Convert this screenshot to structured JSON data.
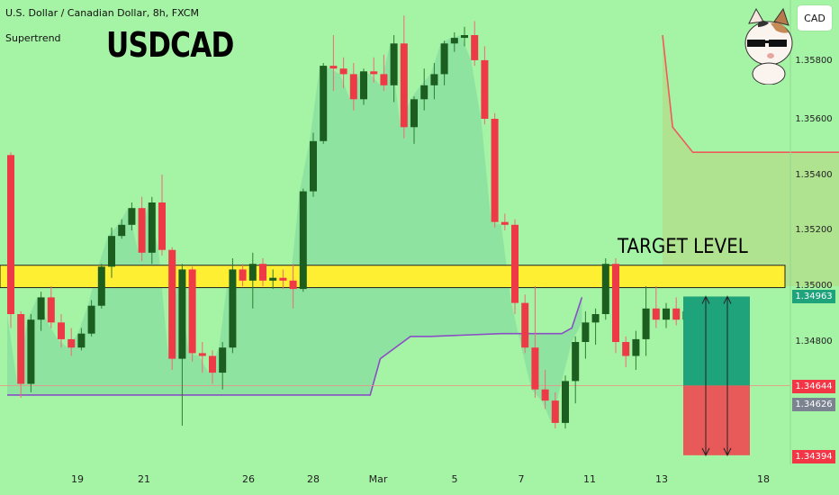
{
  "header": {
    "instrument": "U.S. Dollar / Canadian Dollar, 8h, FXCM",
    "indicator": "Supertrend",
    "symbol": "USDCAD",
    "currency_button": "CAD"
  },
  "annotations": {
    "target_label": "TARGET LEVEL"
  },
  "price_badges": {
    "p1": "1.34963",
    "p2": "1.34644",
    "p3": "1.34626",
    "p4": "1.34394"
  },
  "colors": {
    "background": "#a5f3a5",
    "bull": "#1b5e20",
    "bear": "#ee3a47",
    "zone": "#ffef33",
    "supertrend_up": "#8a4fc4",
    "supertrend_down": "#ef5b5b",
    "tp_zone": "#1fa37a",
    "sl_zone": "#e85a5a"
  },
  "chart_data": {
    "type": "candlestick",
    "timeframe": "8h",
    "ylim": [
      1.3436,
      1.3594
    ],
    "y_ticks": [
      "1.35800",
      "1.35600",
      "1.35400",
      "1.35200",
      "1.35000",
      "1.34800"
    ],
    "y_tick_values": [
      1.358,
      1.356,
      1.354,
      1.352,
      1.35,
      1.348
    ],
    "x_labels": [
      "19",
      "21",
      "26",
      "28",
      "Mar",
      "5",
      "7",
      "11",
      "13",
      "18"
    ],
    "candles": [
      [
        1.3547,
        1.3548,
        1.3485,
        1.349
      ],
      [
        1.349,
        1.3491,
        1.346,
        1.3465
      ],
      [
        1.3465,
        1.349,
        1.3462,
        1.3488
      ],
      [
        1.3488,
        1.3498,
        1.3484,
        1.3496
      ],
      [
        1.3496,
        1.35,
        1.3485,
        1.3487
      ],
      [
        1.3487,
        1.349,
        1.3478,
        1.3481
      ],
      [
        1.3481,
        1.3485,
        1.3475,
        1.3478
      ],
      [
        1.3478,
        1.3485,
        1.3477,
        1.3483
      ],
      [
        1.3483,
        1.3495,
        1.3482,
        1.3493
      ],
      [
        1.3493,
        1.3508,
        1.3492,
        1.3507
      ],
      [
        1.3507,
        1.3521,
        1.3503,
        1.3518
      ],
      [
        1.3518,
        1.3524,
        1.3517,
        1.3522
      ],
      [
        1.3522,
        1.353,
        1.352,
        1.3528
      ],
      [
        1.3528,
        1.3532,
        1.3509,
        1.3512
      ],
      [
        1.3512,
        1.3532,
        1.3508,
        1.353
      ],
      [
        1.353,
        1.354,
        1.3511,
        1.3513
      ],
      [
        1.3513,
        1.3514,
        1.347,
        1.3474
      ],
      [
        1.3474,
        1.3508,
        1.345,
        1.3506
      ],
      [
        1.3506,
        1.3507,
        1.3473,
        1.3476
      ],
      [
        1.3476,
        1.348,
        1.3469,
        1.3475
      ],
      [
        1.3475,
        1.3477,
        1.3465,
        1.3469
      ],
      [
        1.3469,
        1.348,
        1.3463,
        1.3478
      ],
      [
        1.3478,
        1.351,
        1.3476,
        1.3506
      ],
      [
        1.3506,
        1.3508,
        1.35,
        1.3502
      ],
      [
        1.3502,
        1.3512,
        1.3492,
        1.3508
      ],
      [
        1.3508,
        1.351,
        1.35,
        1.3502
      ],
      [
        1.3502,
        1.3506,
        1.3499,
        1.3503
      ],
      [
        1.3503,
        1.3506,
        1.3499,
        1.3502
      ],
      [
        1.3502,
        1.3508,
        1.3492,
        1.3499
      ],
      [
        1.3499,
        1.3535,
        1.3498,
        1.3534
      ],
      [
        1.3534,
        1.3555,
        1.3532,
        1.3552
      ],
      [
        1.3552,
        1.358,
        1.3551,
        1.3579
      ],
      [
        1.3579,
        1.359,
        1.357,
        1.3578
      ],
      [
        1.3578,
        1.3582,
        1.3571,
        1.3576
      ],
      [
        1.3576,
        1.358,
        1.3563,
        1.3567
      ],
      [
        1.3567,
        1.3578,
        1.3565,
        1.3577
      ],
      [
        1.3577,
        1.3582,
        1.3573,
        1.3576
      ],
      [
        1.3576,
        1.3583,
        1.357,
        1.3572
      ],
      [
        1.3572,
        1.359,
        1.3566,
        1.3587
      ],
      [
        1.3587,
        1.3597,
        1.3553,
        1.3557
      ],
      [
        1.3557,
        1.3568,
        1.3551,
        1.3567
      ],
      [
        1.3567,
        1.3578,
        1.3563,
        1.3572
      ],
      [
        1.3572,
        1.358,
        1.3567,
        1.3576
      ],
      [
        1.3576,
        1.3588,
        1.3572,
        1.3587
      ],
      [
        1.3587,
        1.3591,
        1.3584,
        1.3589
      ],
      [
        1.3589,
        1.3593,
        1.3586,
        1.359
      ],
      [
        1.359,
        1.3595,
        1.3579,
        1.3581
      ],
      [
        1.3581,
        1.3586,
        1.3558,
        1.356
      ],
      [
        1.356,
        1.3562,
        1.3521,
        1.3523
      ],
      [
        1.3523,
        1.3526,
        1.352,
        1.3522
      ],
      [
        1.3522,
        1.3524,
        1.349,
        1.3494
      ],
      [
        1.3494,
        1.3497,
        1.3476,
        1.3478
      ],
      [
        1.3478,
        1.35,
        1.346,
        1.3463
      ],
      [
        1.3463,
        1.347,
        1.3456,
        1.3459
      ],
      [
        1.3459,
        1.3462,
        1.3449,
        1.3451
      ],
      [
        1.3451,
        1.3468,
        1.3449,
        1.3466
      ],
      [
        1.3466,
        1.3482,
        1.3458,
        1.348
      ],
      [
        1.348,
        1.3491,
        1.3474,
        1.3487
      ],
      [
        1.3487,
        1.3492,
        1.3479,
        1.349
      ],
      [
        1.349,
        1.351,
        1.3488,
        1.3508
      ],
      [
        1.3508,
        1.351,
        1.3476,
        1.348
      ],
      [
        1.348,
        1.3482,
        1.3471,
        1.3475
      ],
      [
        1.3475,
        1.3484,
        1.347,
        1.3481
      ],
      [
        1.3481,
        1.35,
        1.3475,
        1.3492
      ],
      [
        1.3492,
        1.35,
        1.3485,
        1.3488
      ],
      [
        1.3488,
        1.3494,
        1.3485,
        1.3492
      ],
      [
        1.3492,
        1.3496,
        1.3486,
        1.3488
      ],
      [
        1.3488,
        1.3496,
        1.3485,
        1.3491
      ],
      [
        1.3491,
        1.3492,
        1.3463,
        1.3467
      ]
    ],
    "supertrend_up": [
      [
        0,
        1.3461
      ],
      [
        37,
        1.3455
      ],
      [
        38,
        1.3455
      ],
      [
        48,
        1.3466
      ],
      [
        49,
        1.3469
      ],
      [
        52,
        1.3469
      ],
      [
        59,
        1.3469
      ],
      [
        62,
        1.3474
      ]
    ],
    "supertrend_up2": [
      [
        0,
        1.3461
      ],
      [
        28,
        1.3461
      ],
      [
        36,
        1.3461
      ],
      [
        37,
        1.3474
      ],
      [
        40,
        1.3482
      ],
      [
        42,
        1.3482
      ],
      [
        49,
        1.3483
      ],
      [
        55,
        1.3483
      ],
      [
        56,
        1.3485
      ],
      [
        57,
        1.3496
      ]
    ],
    "supertrend_down": [
      [
        65,
        1.359
      ],
      [
        66,
        1.3557
      ],
      [
        68,
        1.3548
      ],
      [
        70,
        1.3548
      ],
      [
        93,
        1.3548
      ]
    ],
    "target_zone": {
      "low": 1.34995,
      "high": 1.35075
    },
    "position": {
      "type": "long",
      "entry": 1.34644,
      "target": 1.34963,
      "stop": 1.34394
    },
    "horizontal_line": 1.34644
  }
}
